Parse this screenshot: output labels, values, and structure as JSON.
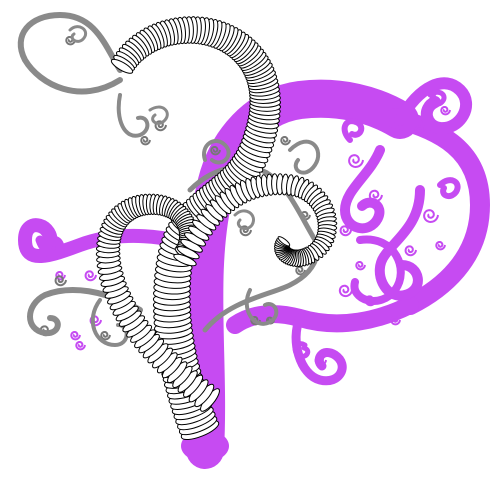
{
  "artwork": {
    "kind": "fractal spiral tree illustration",
    "background": "#ffffff",
    "colors": {
      "magenta": "#c64bf2",
      "magenta_dark": "#a43fd8",
      "ring_stroke": "#000000",
      "ring_fill": "#ffffff",
      "gray_stroke": "#777777",
      "gray_light": "#aaaaaa"
    }
  }
}
